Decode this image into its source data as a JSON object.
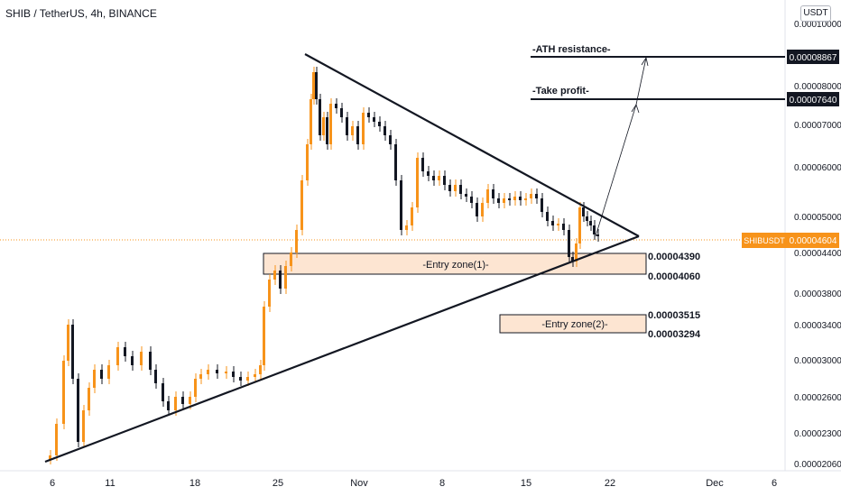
{
  "header": {
    "title": "SHIB / TetherUS, 4h, BINANCE",
    "currency_button": "USDT"
  },
  "chart_data": {
    "type": "candlestick",
    "symbol": "SHIBUSDT",
    "last_price": "0.00004604",
    "y_axis_ticks": [
      "0.00010000",
      "0.00008000",
      "0.00007000",
      "0.00006000",
      "0.00005000",
      "0.00004400",
      "0.00003800",
      "0.00003400",
      "0.00003000",
      "0.00002600",
      "0.00002300",
      "0.00002060"
    ],
    "x_axis_ticks": [
      "6",
      "11",
      "18",
      "25",
      "Nov",
      "8",
      "15",
      "22",
      "Dec",
      "6"
    ],
    "annotations": {
      "ath_label": "-ATH resistance-",
      "ath_price": "0.00008867",
      "tp_label": "-Take profit-",
      "tp_price": "0.00007640",
      "zone1_label": "-Entry zone(1)-",
      "zone1_top": "0.00004390",
      "zone1_bottom": "0.00004060",
      "zone2_label": "-Entry zone(2)-",
      "zone2_top": "0.00003515",
      "zone2_bottom": "0.00003294"
    },
    "colors": {
      "up": "#f7931a",
      "down": "#131722",
      "zone_fill": "#fde5d2",
      "price_label": "#f7931a"
    }
  }
}
